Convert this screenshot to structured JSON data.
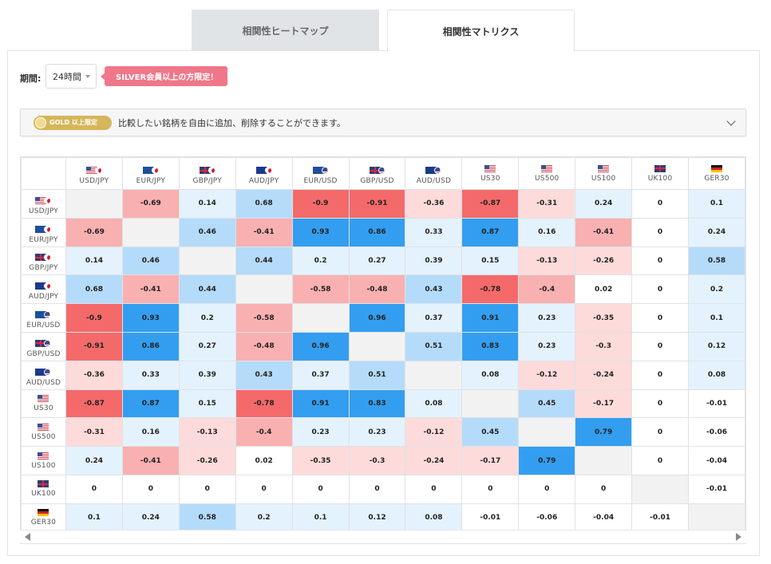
{
  "tabs": [
    {
      "label": "相関性ヒートマップ",
      "active": false
    },
    {
      "label": "相関性マトリクス",
      "active": true
    }
  ],
  "period": {
    "label": "期間:",
    "value": "24時間",
    "badge": "SILVER会員以上の方限定！"
  },
  "gold": {
    "badge": "GOLD 以上限定",
    "text": "比較したい銘柄を自由に追加、削除することができます。"
  },
  "colors": {
    "strong_neg": "#f46a6a",
    "mid_neg": "#f9b0b0",
    "weak_neg": "#fddbdb",
    "strong_pos": "#339ef0",
    "mid_pos": "#b5dbfa",
    "weak_pos": "#e4f2fd",
    "diagonal": "#f2f2f2"
  },
  "symbols": [
    {
      "label": "USD/JPY",
      "flags": [
        "us",
        "jp"
      ]
    },
    {
      "label": "EUR/JPY",
      "flags": [
        "eu",
        "jp"
      ]
    },
    {
      "label": "GBP/JPY",
      "flags": [
        "uk",
        "jp"
      ]
    },
    {
      "label": "AUD/JPY",
      "flags": [
        "au",
        "jp"
      ]
    },
    {
      "label": "EUR/USD",
      "flags": [
        "eu",
        "us"
      ]
    },
    {
      "label": "GBP/USD",
      "flags": [
        "uk",
        "us"
      ]
    },
    {
      "label": "AUD/USD",
      "flags": [
        "au",
        "us"
      ]
    },
    {
      "label": "US30",
      "flags": [
        "us"
      ]
    },
    {
      "label": "US500",
      "flags": [
        "us"
      ]
    },
    {
      "label": "US100",
      "flags": [
        "us"
      ]
    },
    {
      "label": "UK100",
      "flags": [
        "uk"
      ]
    },
    {
      "label": "GER30",
      "flags": [
        "de"
      ]
    }
  ],
  "matrix": [
    [
      null,
      -0.69,
      0.14,
      0.68,
      -0.9,
      -0.91,
      -0.36,
      -0.87,
      -0.31,
      0.24,
      0,
      0.1
    ],
    [
      -0.69,
      null,
      0.46,
      -0.41,
      0.93,
      0.86,
      0.33,
      0.87,
      0.16,
      -0.41,
      0,
      0.24
    ],
    [
      0.14,
      0.46,
      null,
      0.44,
      0.2,
      0.27,
      0.39,
      0.15,
      -0.13,
      -0.26,
      0,
      0.58
    ],
    [
      0.68,
      -0.41,
      0.44,
      null,
      -0.58,
      -0.48,
      0.43,
      -0.78,
      -0.4,
      0.02,
      0,
      0.2
    ],
    [
      -0.9,
      0.93,
      0.2,
      -0.58,
      null,
      0.96,
      0.37,
      0.91,
      0.23,
      -0.35,
      0,
      0.1
    ],
    [
      -0.91,
      0.86,
      0.27,
      -0.48,
      0.96,
      null,
      0.51,
      0.83,
      0.23,
      -0.3,
      0,
      0.12
    ],
    [
      -0.36,
      0.33,
      0.39,
      0.43,
      0.37,
      0.51,
      null,
      0.08,
      -0.12,
      -0.24,
      0,
      0.08
    ],
    [
      -0.87,
      0.87,
      0.15,
      -0.78,
      0.91,
      0.83,
      0.08,
      null,
      0.45,
      -0.17,
      0,
      -0.01
    ],
    [
      -0.31,
      0.16,
      -0.13,
      -0.4,
      0.23,
      0.23,
      -0.12,
      0.45,
      null,
      0.79,
      0,
      -0.06
    ],
    [
      0.24,
      -0.41,
      -0.26,
      0.02,
      -0.35,
      -0.3,
      -0.24,
      -0.17,
      0.79,
      null,
      0,
      -0.04
    ],
    [
      0,
      0,
      0,
      0,
      0,
      0,
      0,
      0,
      0,
      0,
      null,
      -0.01
    ],
    [
      0.1,
      0.24,
      0.58,
      0.2,
      0.1,
      0.12,
      0.08,
      -0.01,
      -0.06,
      -0.04,
      -0.01,
      null
    ]
  ]
}
